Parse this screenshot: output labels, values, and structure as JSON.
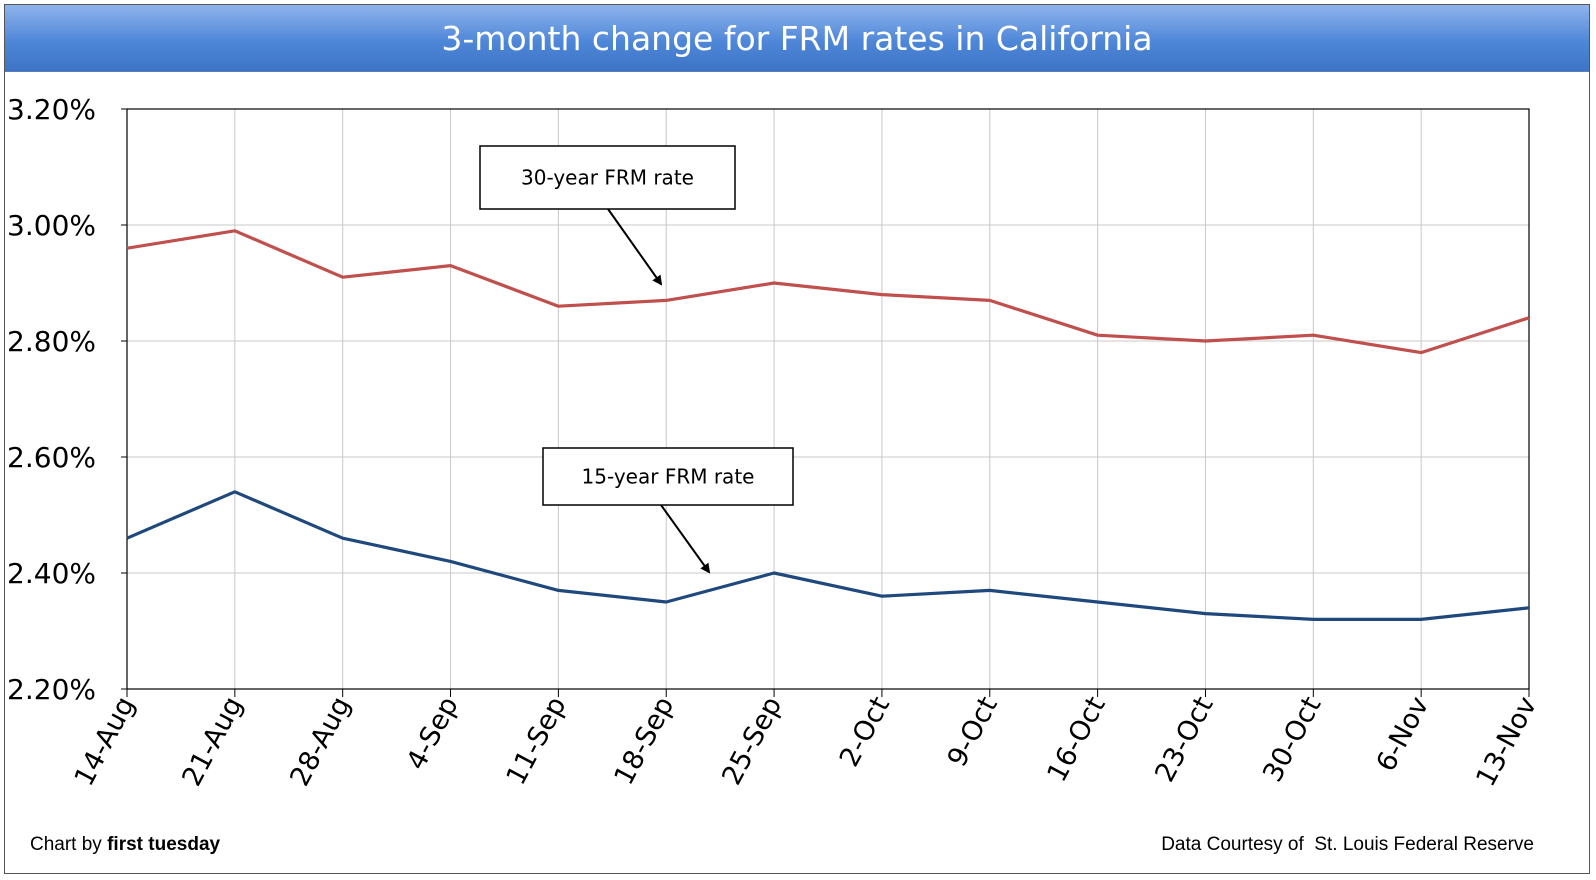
{
  "chart_data": {
    "type": "line",
    "title": "3-month change for FRM rates in California",
    "categories": [
      "14-Aug",
      "21-Aug",
      "28-Aug",
      "4-Sep",
      "11-Sep",
      "18-Sep",
      "25-Sep",
      "2-Oct",
      "9-Oct",
      "16-Oct",
      "23-Oct",
      "30-Oct",
      "6-Nov",
      "13-Nov"
    ],
    "series": [
      {
        "name": "30-year FRM rate",
        "color": "#c0504d",
        "values": [
          2.96,
          2.99,
          2.91,
          2.93,
          2.86,
          2.87,
          2.9,
          2.88,
          2.87,
          2.81,
          2.8,
          2.81,
          2.78,
          2.84
        ]
      },
      {
        "name": "15-year FRM rate",
        "color": "#1f497d",
        "values": [
          2.46,
          2.54,
          2.46,
          2.42,
          2.37,
          2.35,
          2.4,
          2.36,
          2.37,
          2.35,
          2.33,
          2.32,
          2.32,
          2.34
        ]
      }
    ],
    "ylim": [
      2.2,
      3.2
    ],
    "yticks": [
      2.2,
      2.4,
      2.6,
      2.8,
      3.0,
      3.2
    ],
    "ytick_labels": [
      "2.20%",
      "2.40%",
      "2.60%",
      "2.80%",
      "3.00%",
      "3.20%"
    ],
    "grid": true,
    "annotations": [
      {
        "text": "30-year FRM rate",
        "series": 0
      },
      {
        "text": "15-year FRM rate",
        "series": 1
      }
    ]
  },
  "footer": {
    "left_prefix": "Chart by ",
    "left_brand": "first tuesday",
    "right": "Data Courtesy of  St. Louis Federal Reserve"
  }
}
